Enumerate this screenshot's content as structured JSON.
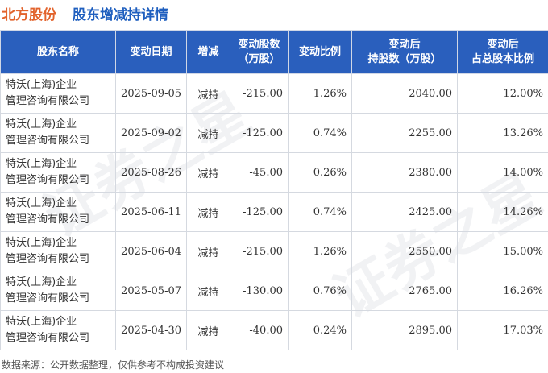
{
  "title": {
    "company": "北方股份",
    "subtitle": "股东增减持详情"
  },
  "table": {
    "headers": [
      "股东名称",
      "变动日期",
      "增减",
      "变动股数\n（万股）",
      "变动比例",
      "变动后\n持股数（万股）",
      "变动后\n占总股本比例"
    ],
    "rows": [
      {
        "name": "特沃(上海)企业\n管理咨询有限公司",
        "date": "2025-09-05",
        "dir": "减持",
        "shares": "-215.00",
        "ratio": "1.26%",
        "after": "2040.00",
        "pct": "12.00%"
      },
      {
        "name": "特沃(上海)企业\n管理咨询有限公司",
        "date": "2025-09-02",
        "dir": "减持",
        "shares": "-125.00",
        "ratio": "0.74%",
        "after": "2255.00",
        "pct": "13.26%"
      },
      {
        "name": "特沃(上海)企业\n管理咨询有限公司",
        "date": "2025-08-26",
        "dir": "减持",
        "shares": "-45.00",
        "ratio": "0.26%",
        "after": "2380.00",
        "pct": "14.00%"
      },
      {
        "name": "特沃(上海)企业\n管理咨询有限公司",
        "date": "2025-06-11",
        "dir": "减持",
        "shares": "-125.00",
        "ratio": "0.74%",
        "after": "2425.00",
        "pct": "14.26%"
      },
      {
        "name": "特沃(上海)企业\n管理咨询有限公司",
        "date": "2025-06-04",
        "dir": "减持",
        "shares": "-215.00",
        "ratio": "1.26%",
        "after": "2550.00",
        "pct": "15.00%"
      },
      {
        "name": "特沃(上海)企业\n管理咨询有限公司",
        "date": "2025-05-07",
        "dir": "减持",
        "shares": "-130.00",
        "ratio": "0.76%",
        "after": "2765.00",
        "pct": "16.26%"
      },
      {
        "name": "特沃(上海)企业\n管理咨询有限公司",
        "date": "2025-04-30",
        "dir": "减持",
        "shares": "-40.00",
        "ratio": "0.24%",
        "after": "2895.00",
        "pct": "17.03%"
      }
    ]
  },
  "watermark": "证券之星",
  "footer": "数据来源：公开数据整理，仅供参考不构成投资建议",
  "colors": {
    "header_bg": "#2a5fbd",
    "title_orange": "#e2632c",
    "title_blue": "#1f5fbf",
    "change_green": "#1a9a3a"
  }
}
